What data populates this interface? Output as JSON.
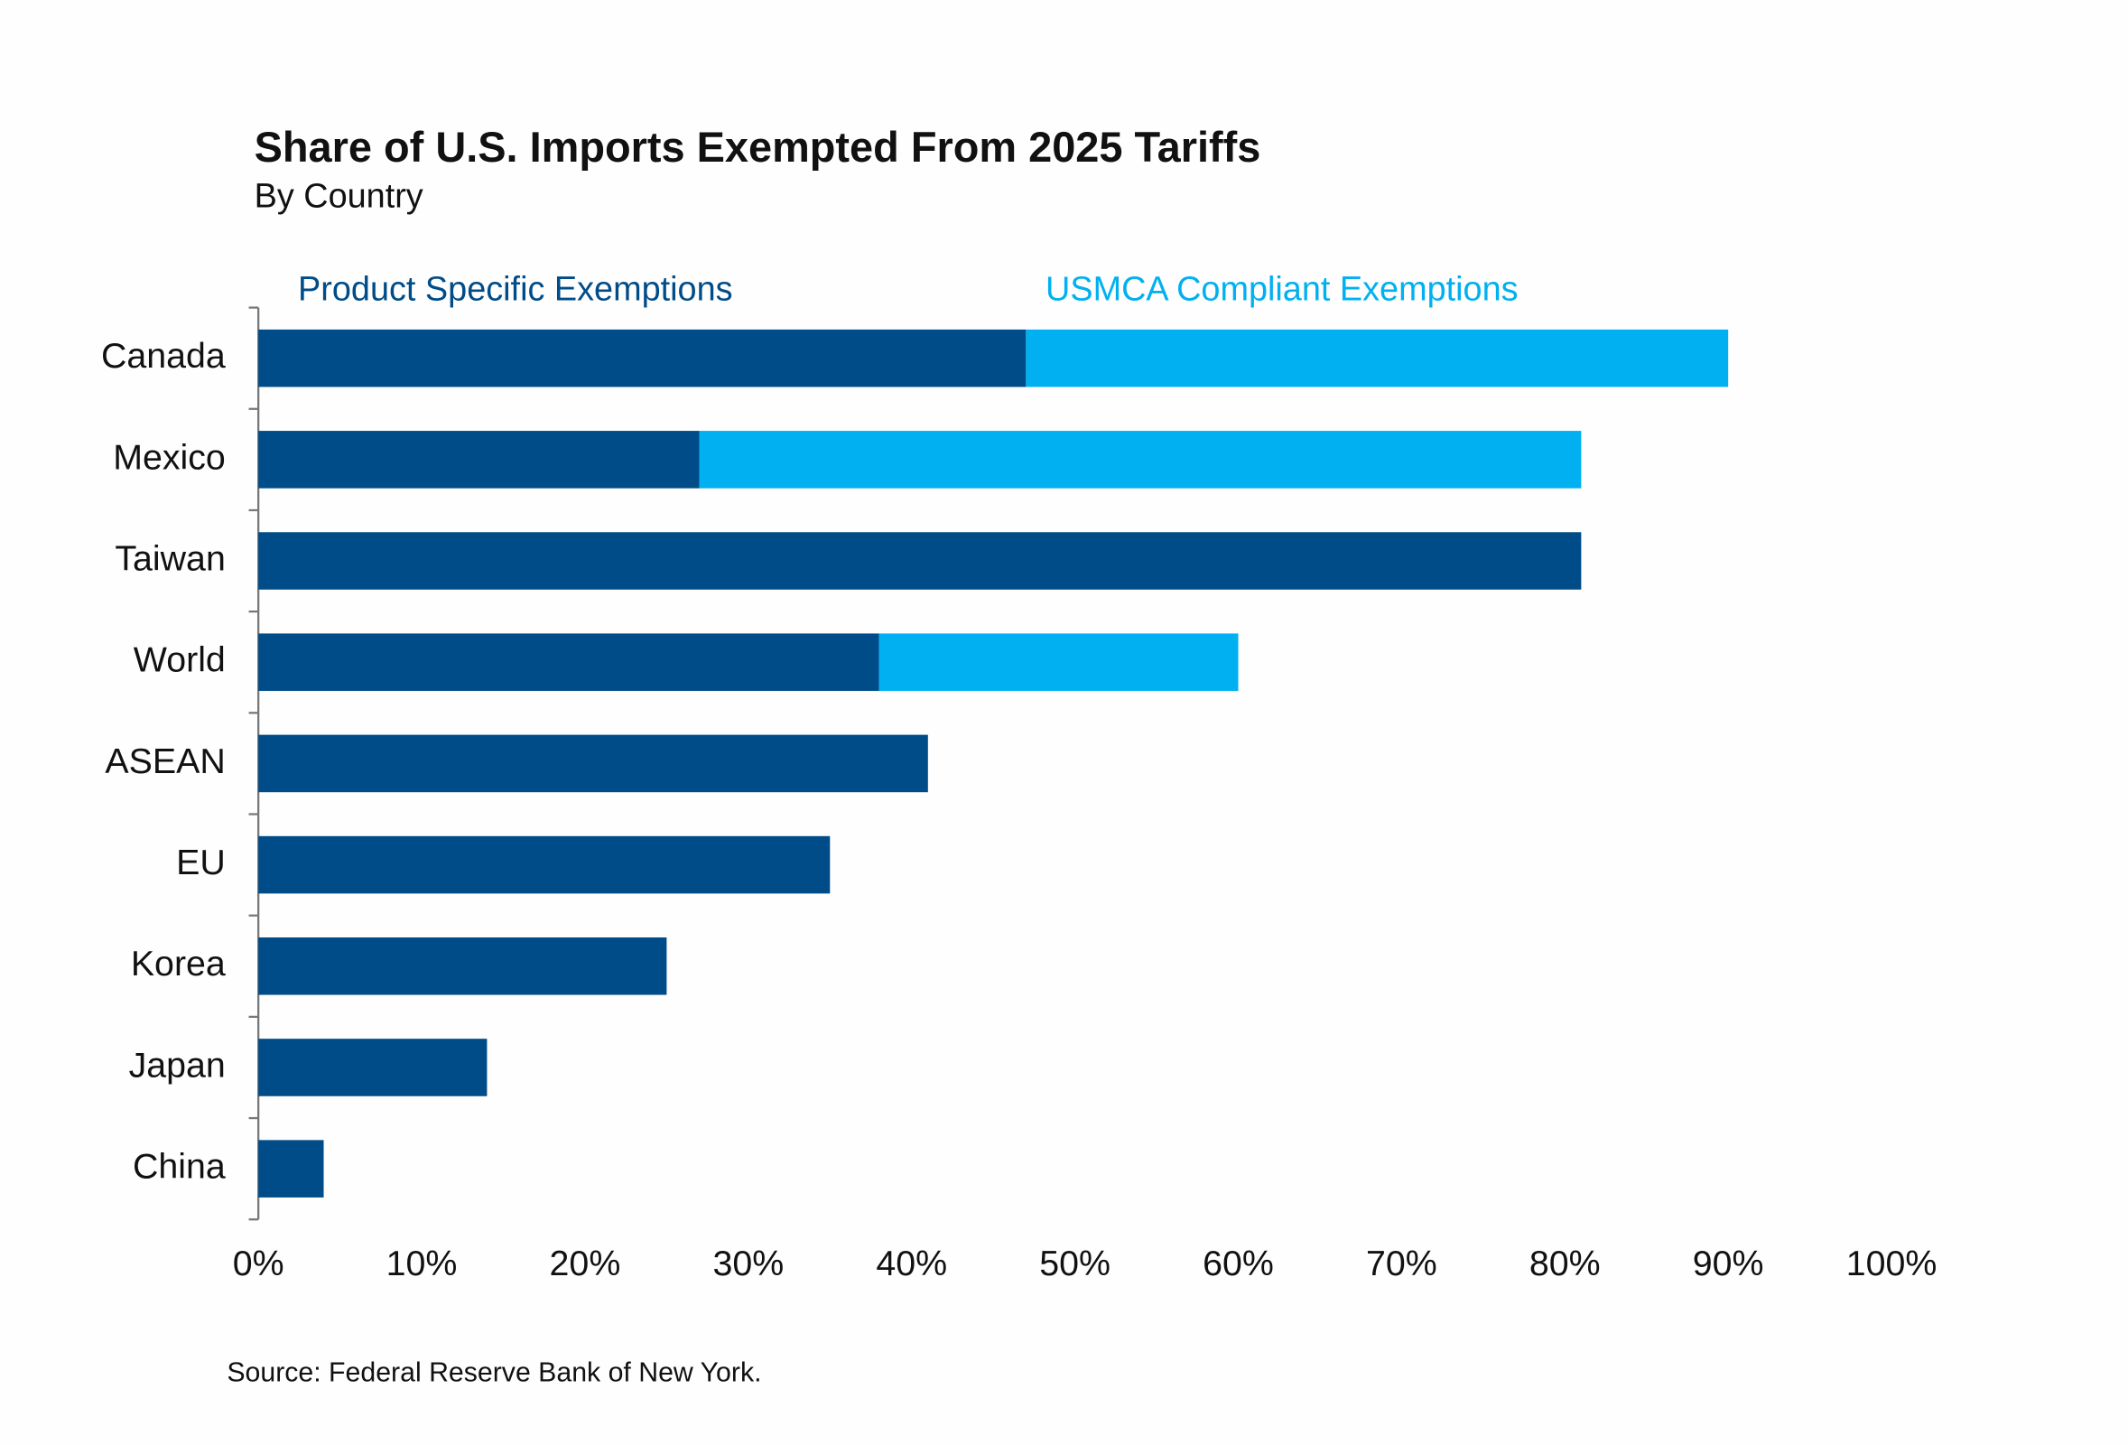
{
  "chart_data": {
    "type": "stacked-barh",
    "title": "Share of U.S. Imports Exempted From 2025 Tariffs",
    "subtitle": "By Country",
    "source": "Source: Federal Reserve Bank of New York.",
    "categories": [
      "Canada",
      "Mexico",
      "Taiwan",
      "World",
      "ASEAN",
      "EU",
      "Korea",
      "Japan",
      "China"
    ],
    "series": [
      {
        "name": "Product Specific Exemptions",
        "color": "#004c88",
        "values": [
          47,
          27,
          81,
          38,
          41,
          35,
          25,
          14,
          4
        ]
      },
      {
        "name": "USMCA Compliant Exemptions",
        "color": "#00b0f0",
        "values": [
          43,
          54,
          null,
          22,
          null,
          null,
          null,
          null,
          null
        ]
      }
    ],
    "xlim": [
      0,
      100
    ],
    "xticks": [
      {
        "value": 0,
        "label": "0%"
      },
      {
        "value": 10,
        "label": "10%"
      },
      {
        "value": 20,
        "label": "20%"
      },
      {
        "value": 30,
        "label": "30%"
      },
      {
        "value": 40,
        "label": "40%"
      },
      {
        "value": 50,
        "label": "50%"
      },
      {
        "value": 60,
        "label": "60%"
      },
      {
        "value": 70,
        "label": "70%"
      },
      {
        "value": 80,
        "label": "80%"
      },
      {
        "value": 90,
        "label": "90%"
      },
      {
        "value": 100,
        "label": "100%"
      }
    ],
    "grid": false
  }
}
